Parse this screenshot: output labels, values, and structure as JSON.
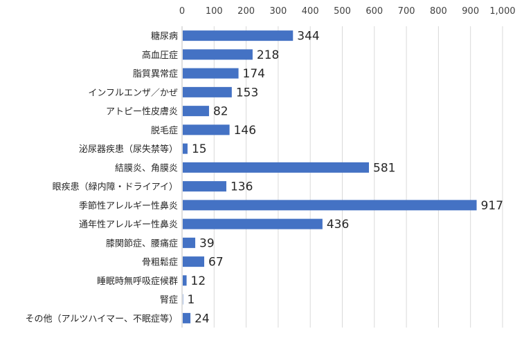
{
  "chart_data": {
    "type": "bar",
    "orientation": "horizontal",
    "categories": [
      "糖尿病",
      "高血圧症",
      "脂質異常症",
      "インフルエンザ／かぜ",
      "アトピー性皮膚炎",
      "脱毛症",
      "泌尿器疾患（尿失禁等）",
      "結膜炎、角膜炎",
      "眼疾患（緑内障・ドライアイ）",
      "季節性アレルギー性鼻炎",
      "通年性アレルギー性鼻炎",
      "膝関節症、腰痛症",
      "骨粗鬆症",
      "睡眠時無呼吸症候群",
      "腎症",
      "その他（アルツハイマー、不眠症等）"
    ],
    "values": [
      344,
      218,
      174,
      153,
      82,
      146,
      15,
      581,
      136,
      917,
      436,
      39,
      67,
      12,
      1,
      24
    ],
    "data_labels": [
      "344",
      "218",
      "174",
      "153",
      "82",
      "146",
      "15",
      "581",
      "136",
      "917",
      "436",
      "39",
      "67",
      "12",
      "1",
      "24"
    ],
    "x_ticks": [
      "0",
      "100",
      "200",
      "300",
      "400",
      "500",
      "600",
      "700",
      "800",
      "900",
      "1,000"
    ],
    "xlim": [
      0,
      1000
    ],
    "x_axis_position": "top",
    "grid": true,
    "legend": false,
    "bar_color": "#4472c4",
    "title": "",
    "xlabel": "",
    "ylabel": ""
  }
}
